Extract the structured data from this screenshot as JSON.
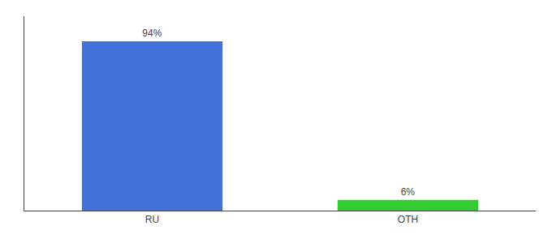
{
  "chart_data": {
    "type": "bar",
    "categories": [
      "RU",
      "OTH"
    ],
    "values": [
      94,
      6
    ],
    "value_labels": [
      "94%",
      "6%"
    ],
    "data_labels": true,
    "colors": [
      "#4472db",
      "#33cc33"
    ],
    "ylim": [
      0,
      108
    ],
    "yticks": [],
    "grid": false,
    "tick_labels": "x"
  }
}
